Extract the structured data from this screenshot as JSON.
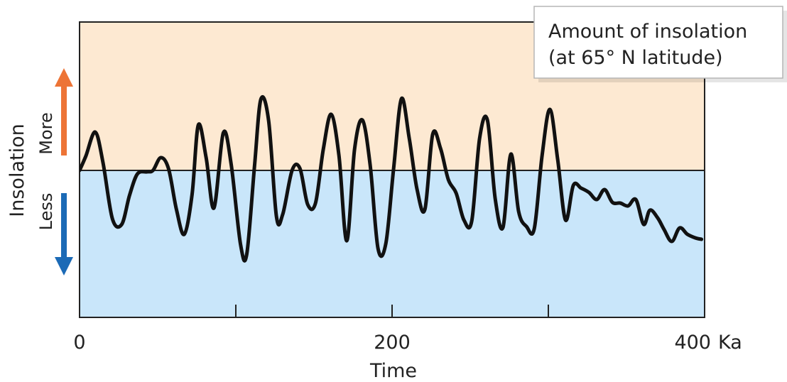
{
  "chart_data": {
    "type": "line",
    "title": "",
    "xlabel": "Time",
    "ylabel": "Insolation",
    "upper_label": "More",
    "lower_label": "Less",
    "x_unit": "Ka",
    "xlim": [
      0,
      400
    ],
    "ylim": [
      -100,
      100
    ],
    "x_ticks": [
      100,
      200,
      300
    ],
    "x_tick_labels": [
      {
        "value": 0,
        "label": "0"
      },
      {
        "value": 200,
        "label": "200"
      },
      {
        "value": 400,
        "label": "400"
      }
    ],
    "legend": [
      "Amount of insolation",
      "(at 65° N latitude)"
    ],
    "baseline": 0,
    "series": [
      {
        "name": "Amount of insolation (at 65° N latitude)",
        "x": [
          0,
          4,
          10,
          15,
          21,
          27,
          32,
          37,
          43,
          47,
          52,
          57,
          62,
          67,
          72,
          76,
          81,
          86,
          92,
          97,
          103,
          107,
          112,
          116,
          121,
          126,
          130,
          136,
          141,
          146,
          151,
          156,
          161,
          166,
          171,
          176,
          181,
          186,
          191,
          196,
          201,
          206,
          211,
          216,
          221,
          226,
          231,
          236,
          241,
          246,
          251,
          256,
          261,
          266,
          271,
          276,
          281,
          286,
          291,
          296,
          301,
          306,
          311,
          316,
          321,
          326,
          331,
          336,
          341,
          346,
          351,
          356,
          361,
          365,
          370,
          374,
          379,
          384,
          389,
          394,
          398
        ],
        "y": [
          0,
          20,
          54,
          11,
          -68,
          -76,
          -35,
          -5,
          -2,
          0,
          18,
          2,
          -55,
          -90,
          -34,
          64,
          18,
          -53,
          53,
          9,
          -104,
          -118,
          7,
          100,
          70,
          -65,
          -62,
          0,
          3,
          -48,
          -46,
          30,
          79,
          21,
          -99,
          30,
          71,
          7,
          -110,
          -103,
          3,
          101,
          45,
          -27,
          -55,
          51,
          31,
          -13,
          -32,
          -70,
          -71,
          45,
          71,
          -40,
          -80,
          23,
          -58,
          -79,
          -82,
          21,
          86,
          15,
          -70,
          -21,
          -25,
          -31,
          -41,
          -27,
          -45,
          -46,
          -50,
          -41,
          -76,
          -56,
          -67,
          -83,
          -100,
          -81,
          -90,
          -95,
          -97
        ]
      }
    ]
  }
}
